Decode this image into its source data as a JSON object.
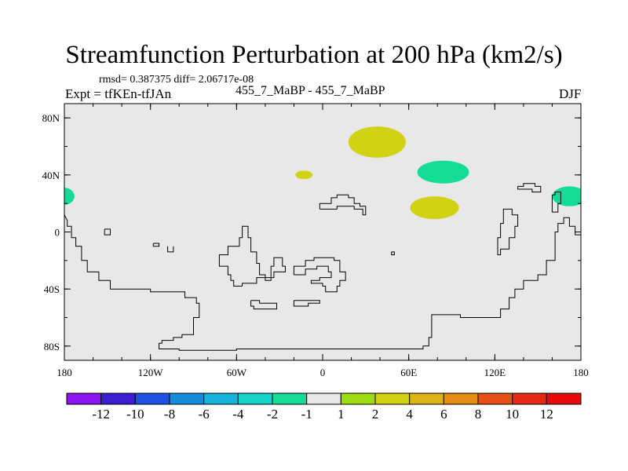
{
  "header": {
    "title": "Streamfunction Perturbation at 200 hPa (km2/s)",
    "stats": "rmsd= 0.387375 diff= 2.06717e-08",
    "experiment": "Expt = tfKEn-tfJAn",
    "subtitle": "455_7_MaBP - 455_7_MaBP",
    "season": "DJF"
  },
  "map": {
    "background_color": "#e8e8e8",
    "lon_range": [
      -180,
      180
    ],
    "lat_range": [
      -90,
      90
    ],
    "x_ticks": [
      {
        "lon": -180,
        "label": "180"
      },
      {
        "lon": -120,
        "label": "120W"
      },
      {
        "lon": -60,
        "label": "60W"
      },
      {
        "lon": 0,
        "label": "0"
      },
      {
        "lon": 60,
        "label": "60E"
      },
      {
        "lon": 120,
        "label": "120E"
      },
      {
        "lon": 180,
        "label": "180"
      }
    ],
    "y_ticks": [
      {
        "lat": 80,
        "label": "80N"
      },
      {
        "lat": 40,
        "label": "40N"
      },
      {
        "lat": 0,
        "label": "0"
      },
      {
        "lat": -40,
        "label": "40S"
      },
      {
        "lat": -80,
        "label": "80S"
      }
    ],
    "anomalies": [
      {
        "name": "anomaly-north-atlantic-eurasia",
        "lon": 38,
        "lat": 63,
        "rlon": 20,
        "rlat": 11,
        "category": "2"
      },
      {
        "name": "anomaly-central-asia",
        "lon": 84,
        "lat": 42,
        "rlon": 18,
        "rlat": 8,
        "category": "-2"
      },
      {
        "name": "anomaly-south-asia",
        "lon": 78,
        "lat": 17,
        "rlon": 17,
        "rlat": 8,
        "category": "2"
      },
      {
        "name": "anomaly-mediterranean",
        "lon": -13,
        "lat": 40,
        "rlon": 6,
        "rlat": 3,
        "category": "2"
      },
      {
        "name": "anomaly-north-pacific-east",
        "lon": 172,
        "lat": 25,
        "rlon": 12,
        "rlat": 7,
        "category": "-2"
      },
      {
        "name": "anomaly-north-pacific-west",
        "lon": -180,
        "lat": 25,
        "rlon": 7,
        "rlat": 6,
        "category": "-2"
      }
    ],
    "coastlines": [
      [
        [
          -180,
          12
        ],
        [
          -178,
          8
        ],
        [
          -178,
          4
        ],
        [
          -175,
          4
        ],
        [
          -175,
          -4
        ],
        [
          -172,
          -4
        ],
        [
          -172,
          -10
        ],
        [
          -168,
          -10
        ],
        [
          -168,
          -20
        ],
        [
          -164,
          -20
        ],
        [
          -164,
          -28
        ],
        [
          -156,
          -28
        ],
        [
          -156,
          -34
        ],
        [
          -148,
          -34
        ],
        [
          -148,
          -40
        ],
        [
          -120,
          -40
        ],
        [
          -120,
          -42
        ],
        [
          -96,
          -42
        ],
        [
          -96,
          -46
        ],
        [
          -88,
          -46
        ],
        [
          -88,
          -50
        ],
        [
          -86,
          -50
        ],
        [
          -86,
          -60
        ],
        [
          -90,
          -60
        ],
        [
          -90,
          -72
        ],
        [
          -98,
          -72
        ],
        [
          -98,
          -74
        ],
        [
          -104,
          -74
        ],
        [
          -104,
          -76
        ],
        [
          -112,
          -76
        ],
        [
          -112,
          -78
        ],
        [
          -114,
          -78
        ],
        [
          -114,
          -82
        ],
        [
          -100,
          -82
        ],
        [
          -100,
          -83
        ],
        [
          -60,
          -83
        ],
        [
          -60,
          -82
        ],
        [
          20,
          -82
        ],
        [
          70,
          -82
        ],
        [
          70,
          -80
        ],
        [
          74,
          -80
        ],
        [
          74,
          -74
        ],
        [
          76,
          -74
        ],
        [
          76,
          -58
        ],
        [
          96,
          -58
        ],
        [
          96,
          -60
        ],
        [
          124,
          -60
        ],
        [
          124,
          -54
        ],
        [
          130,
          -54
        ],
        [
          130,
          -46
        ],
        [
          134,
          -46
        ],
        [
          134,
          -40
        ],
        [
          140,
          -40
        ],
        [
          140,
          -34
        ],
        [
          150,
          -34
        ],
        [
          150,
          -30
        ],
        [
          156,
          -30
        ],
        [
          156,
          -20
        ],
        [
          162,
          -20
        ],
        [
          162,
          0
        ],
        [
          164,
          0
        ],
        [
          164,
          6
        ],
        [
          168,
          6
        ],
        [
          168,
          10
        ],
        [
          172,
          10
        ],
        [
          172,
          4
        ],
        [
          176,
          4
        ],
        [
          176,
          -2
        ],
        [
          180,
          -2
        ]
      ],
      [
        [
          -56,
          -38
        ],
        [
          -62,
          -38
        ],
        [
          -62,
          -34
        ],
        [
          -64,
          -34
        ],
        [
          -64,
          -30
        ],
        [
          -66,
          -30
        ],
        [
          -66,
          -24
        ],
        [
          -72,
          -24
        ],
        [
          -72,
          -16
        ],
        [
          -66,
          -16
        ],
        [
          -66,
          -10
        ],
        [
          -58,
          -10
        ],
        [
          -58,
          -4
        ],
        [
          -56,
          -4
        ],
        [
          -56,
          4
        ],
        [
          -52,
          4
        ],
        [
          -52,
          -4
        ],
        [
          -50,
          -4
        ],
        [
          -50,
          -14
        ],
        [
          -46,
          -14
        ],
        [
          -46,
          -22
        ],
        [
          -44,
          -22
        ],
        [
          -44,
          -30
        ],
        [
          -40,
          -30
        ],
        [
          -40,
          -34
        ],
        [
          -36,
          -34
        ],
        [
          -36,
          -24
        ],
        [
          -34,
          -24
        ],
        [
          -34,
          -18
        ],
        [
          -28,
          -18
        ],
        [
          -28,
          -24
        ],
        [
          -26,
          -24
        ],
        [
          -26,
          -28
        ],
        [
          -34,
          -28
        ],
        [
          -34,
          -32
        ],
        [
          -46,
          -32
        ],
        [
          -46,
          -36
        ],
        [
          -56,
          -36
        ],
        [
          -56,
          -38
        ]
      ],
      [
        [
          -20,
          -30
        ],
        [
          -20,
          -24
        ],
        [
          -12,
          -24
        ],
        [
          -12,
          -20
        ],
        [
          -6,
          -20
        ],
        [
          -6,
          -18
        ],
        [
          8,
          -18
        ],
        [
          8,
          -20
        ],
        [
          12,
          -20
        ],
        [
          12,
          -28
        ],
        [
          16,
          -28
        ],
        [
          16,
          -34
        ],
        [
          12,
          -34
        ],
        [
          12,
          -38
        ],
        [
          10,
          -38
        ],
        [
          10,
          -42
        ],
        [
          2,
          -42
        ],
        [
          2,
          -38
        ],
        [
          0,
          -38
        ],
        [
          0,
          -36
        ],
        [
          -8,
          -36
        ],
        [
          -8,
          -34
        ],
        [
          -2,
          -34
        ],
        [
          -2,
          -32
        ],
        [
          6,
          -32
        ],
        [
          6,
          -28
        ],
        [
          4,
          -28
        ],
        [
          4,
          -24
        ],
        [
          -4,
          -24
        ],
        [
          -4,
          -26
        ],
        [
          -12,
          -26
        ],
        [
          -12,
          -30
        ],
        [
          -20,
          -30
        ]
      ],
      [
        [
          -50,
          -48
        ],
        [
          -50,
          -52
        ],
        [
          -48,
          -52
        ],
        [
          -48,
          -54
        ],
        [
          -32,
          -54
        ],
        [
          -32,
          -50
        ],
        [
          -44,
          -50
        ],
        [
          -44,
          -48
        ],
        [
          -50,
          -48
        ]
      ],
      [
        [
          -20,
          -48
        ],
        [
          -20,
          -52
        ],
        [
          -10,
          -52
        ],
        [
          -10,
          -50
        ],
        [
          -2,
          -50
        ],
        [
          -2,
          -48
        ],
        [
          -20,
          -48
        ]
      ],
      [
        [
          -2,
          16
        ],
        [
          -2,
          20
        ],
        [
          6,
          20
        ],
        [
          6,
          24
        ],
        [
          10,
          24
        ],
        [
          10,
          26
        ],
        [
          18,
          26
        ],
        [
          18,
          24
        ],
        [
          22,
          24
        ],
        [
          22,
          20
        ],
        [
          26,
          20
        ],
        [
          26,
          18
        ],
        [
          30,
          18
        ],
        [
          30,
          12
        ],
        [
          28,
          12
        ],
        [
          28,
          16
        ],
        [
          22,
          16
        ],
        [
          22,
          18
        ],
        [
          10,
          18
        ],
        [
          10,
          16
        ],
        [
          -2,
          16
        ]
      ],
      [
        [
          132,
          12
        ],
        [
          132,
          16
        ],
        [
          126,
          16
        ],
        [
          126,
          6
        ],
        [
          124,
          6
        ],
        [
          124,
          -4
        ],
        [
          122,
          -4
        ],
        [
          122,
          -8
        ],
        [
          122,
          -16
        ],
        [
          124,
          -16
        ],
        [
          124,
          -12
        ],
        [
          130,
          -12
        ],
        [
          130,
          -4
        ],
        [
          134,
          -4
        ],
        [
          134,
          4
        ],
        [
          136,
          4
        ],
        [
          136,
          12
        ],
        [
          132,
          12
        ]
      ],
      [
        [
          136,
          32
        ],
        [
          136,
          30
        ],
        [
          146,
          30
        ],
        [
          146,
          28
        ],
        [
          152,
          28
        ],
        [
          152,
          32
        ],
        [
          148,
          32
        ],
        [
          148,
          34
        ],
        [
          140,
          34
        ],
        [
          140,
          32
        ],
        [
          136,
          32
        ]
      ],
      [
        [
          160,
          26
        ],
        [
          162,
          26
        ],
        [
          162,
          28
        ],
        [
          166,
          28
        ],
        [
          166,
          20
        ],
        [
          164,
          20
        ],
        [
          164,
          14
        ],
        [
          160,
          14
        ],
        [
          160,
          26
        ]
      ],
      [
        [
          -118,
          -8
        ],
        [
          -118,
          -10
        ],
        [
          -114,
          -10
        ],
        [
          -114,
          -8
        ],
        [
          -118,
          -8
        ]
      ],
      [
        [
          -108,
          -10
        ],
        [
          -108,
          -14
        ],
        [
          -104,
          -14
        ],
        [
          -104,
          -10
        ]
      ],
      [
        [
          -152,
          2
        ],
        [
          -152,
          -2
        ],
        [
          -148,
          -2
        ],
        [
          -148,
          2
        ],
        [
          -152,
          2
        ]
      ],
      [
        [
          48,
          -14
        ],
        [
          48,
          -16
        ],
        [
          50,
          -16
        ],
        [
          50,
          -14
        ],
        [
          48,
          -14
        ]
      ]
    ]
  },
  "colorbar": {
    "categories": [
      "-12",
      "-10",
      "-8",
      "-6",
      "-4",
      "-2",
      "-1",
      "1",
      "2",
      "4",
      "6",
      "8",
      "10",
      "12"
    ],
    "colors": [
      "#8c14f0",
      "#3c1ed2",
      "#1e50e6",
      "#148cdc",
      "#14b4dc",
      "#14d2c8",
      "#14dc96",
      "#e8e8e8",
      "#a0dc14",
      "#d2d214",
      "#dcb414",
      "#e68c14",
      "#e65014",
      "#e62814",
      "#e60a0a"
    ]
  }
}
